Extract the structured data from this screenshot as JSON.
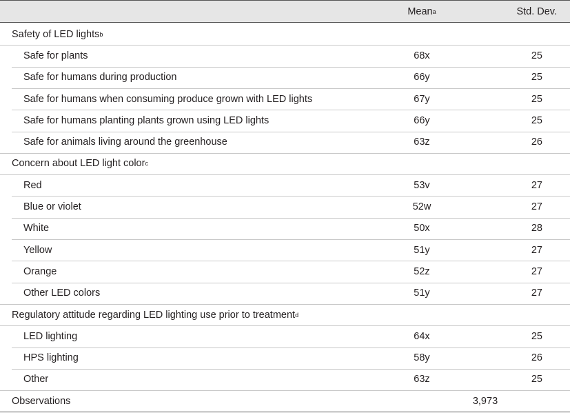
{
  "table": {
    "header": {
      "mean": "Mean",
      "mean_note": "a",
      "std_dev": "Std. Dev."
    },
    "sections": [
      {
        "title": "Safety of LED lights",
        "note": "b",
        "rows": [
          {
            "label": "Safe for plants",
            "mean": "68x",
            "std_dev": 25
          },
          {
            "label": "Safe for humans during production",
            "mean": "66y",
            "std_dev": 25
          },
          {
            "label": "Safe for humans when consuming produce grown with LED lights",
            "mean": "67y",
            "std_dev": 25
          },
          {
            "label": "Safe for humans planting plants grown using LED lights",
            "mean": "66y",
            "std_dev": 25
          },
          {
            "label": "Safe for animals living around the greenhouse",
            "mean": "63z",
            "std_dev": 26
          }
        ]
      },
      {
        "title": "Concern about LED light color",
        "note": "c",
        "rows": [
          {
            "label": "Red",
            "mean": "53v",
            "std_dev": 27
          },
          {
            "label": "Blue or violet",
            "mean": "52w",
            "std_dev": 27
          },
          {
            "label": "White",
            "mean": "50x",
            "std_dev": 28
          },
          {
            "label": "Yellow",
            "mean": "51y",
            "std_dev": 27
          },
          {
            "label": "Orange",
            "mean": "52z",
            "std_dev": 27
          },
          {
            "label": "Other LED colors",
            "mean": "51y",
            "std_dev": 27
          }
        ]
      },
      {
        "title": "Regulatory attitude regarding LED lighting use prior to treatment",
        "note": "d",
        "rows": [
          {
            "label": "LED lighting",
            "mean": "64x",
            "std_dev": 25
          },
          {
            "label": "HPS lighting",
            "mean": "58y",
            "std_dev": 26
          },
          {
            "label": "Other",
            "mean": "63z",
            "std_dev": 25
          }
        ]
      }
    ],
    "observations": {
      "label": "Observations",
      "value": "3,973"
    }
  }
}
